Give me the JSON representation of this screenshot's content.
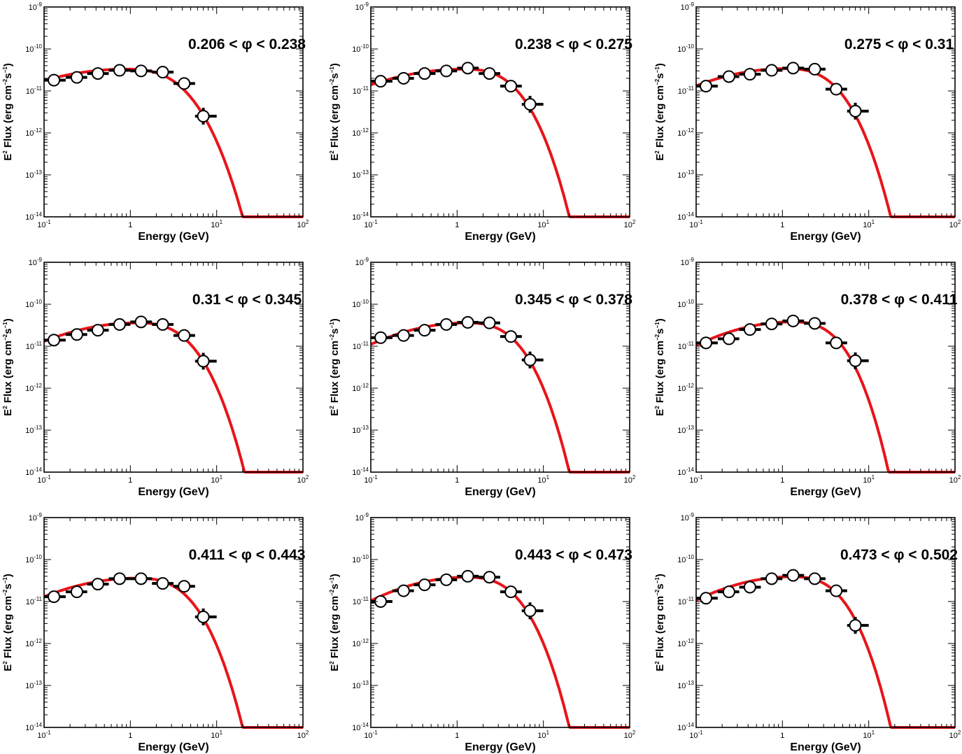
{
  "figure": {
    "xlabel": "Energy (GeV)",
    "ylabel_prefix": "E",
    "ylabel_main": " Flux (erg cm",
    "ylabel_mid": "s",
    "ylabel_end": ")",
    "x_tick_labels": [
      "10",
      "1",
      "10",
      "10"
    ],
    "y_tick_base": "10",
    "colors": {
      "model": "#e8141a",
      "points": "#000000",
      "frame": "#000000"
    }
  },
  "chart_data": [
    {
      "type": "scatter",
      "annotation": "0.206 < φ < 0.238",
      "xlabel": "Energy (GeV)",
      "ylabel": "E2 Flux (erg cm-2 s-1)",
      "xscale": "log",
      "yscale": "log",
      "xlim": [
        0.1,
        100
      ],
      "ylim": [
        1e-14,
        1e-09
      ],
      "x": [
        0.13,
        0.24,
        0.42,
        0.75,
        1.33,
        2.37,
        4.2,
        7.0
      ],
      "y": [
        1.8e-11,
        2.1e-11,
        2.6e-11,
        3.1e-11,
        3e-11,
        2.8e-11,
        1.5e-11,
        2.5e-12
      ],
      "x_err_low": [
        0.1,
        0.178,
        0.316,
        0.562,
        1.0,
        1.78,
        3.16,
        5.62
      ],
      "x_err_high": [
        0.178,
        0.316,
        0.562,
        1.0,
        1.78,
        3.16,
        5.62,
        10.0
      ],
      "model": {
        "name": "",
        "norm": 3.3e-11,
        "e_peak": 0.9,
        "sigma": 1.3,
        "cutoff_at": 20.0,
        "floor": 1e-14
      }
    },
    {
      "type": "scatter",
      "annotation": "0.238 < φ < 0.275",
      "xlabel": "Energy (GeV)",
      "ylabel": "E2 Flux (erg cm-2 s-1)",
      "xscale": "log",
      "yscale": "log",
      "xlim": [
        0.1,
        100
      ],
      "ylim": [
        1e-14,
        1e-09
      ],
      "x": [
        0.13,
        0.24,
        0.42,
        0.75,
        1.33,
        2.37,
        4.2,
        7.0
      ],
      "y": [
        1.7e-11,
        2e-11,
        2.6e-11,
        3e-11,
        3.5e-11,
        2.6e-11,
        1.3e-11,
        4.8e-12
      ],
      "x_err_low": [
        0.1,
        0.178,
        0.316,
        0.562,
        1.0,
        1.78,
        3.16,
        5.62
      ],
      "x_err_high": [
        0.178,
        0.316,
        0.562,
        1.0,
        1.78,
        3.16,
        5.62,
        10.0
      ],
      "model": {
        "name": "",
        "norm": 3.3e-11,
        "e_peak": 1.2,
        "sigma": 1.25,
        "cutoff_at": 20.0,
        "floor": 1e-14
      }
    },
    {
      "type": "scatter",
      "annotation": "0.275 < φ < 0.31",
      "xlabel": "Energy (GeV)",
      "ylabel": "E2 Flux (erg cm-2 s-1)",
      "xscale": "log",
      "yscale": "log",
      "xlim": [
        0.1,
        100
      ],
      "ylim": [
        1e-14,
        1e-09
      ],
      "x": [
        0.13,
        0.24,
        0.42,
        0.75,
        1.33,
        2.37,
        4.2,
        7.0
      ],
      "y": [
        1.3e-11,
        2.2e-11,
        2.5e-11,
        3.1e-11,
        3.5e-11,
        3.3e-11,
        1.1e-11,
        3.3e-12
      ],
      "x_err_low": [
        0.1,
        0.178,
        0.316,
        0.562,
        1.0,
        1.78,
        3.16,
        5.62
      ],
      "x_err_high": [
        0.178,
        0.316,
        0.562,
        1.0,
        1.78,
        3.16,
        5.62,
        10.0
      ],
      "model": {
        "name": "",
        "norm": 3.4e-11,
        "e_peak": 1.1,
        "sigma": 1.15,
        "cutoff_at": 18.0,
        "floor": 1e-14
      }
    },
    {
      "type": "scatter",
      "annotation": "0.31 < φ < 0.345",
      "xlabel": "Energy (GeV)",
      "ylabel": "E2 Flux (erg cm-2 s-1)",
      "xscale": "log",
      "yscale": "log",
      "xlim": [
        0.1,
        100
      ],
      "ylim": [
        1e-14,
        1e-09
      ],
      "x": [
        0.13,
        0.24,
        0.42,
        0.75,
        1.33,
        2.37,
        4.2,
        7.0
      ],
      "y": [
        1.4e-11,
        1.9e-11,
        2.4e-11,
        3.3e-11,
        3.8e-11,
        3.3e-11,
        1.8e-11,
        4.4e-12
      ],
      "x_err_low": [
        0.1,
        0.178,
        0.316,
        0.562,
        1.0,
        1.78,
        3.16,
        5.62
      ],
      "x_err_high": [
        0.178,
        0.316,
        0.562,
        1.0,
        1.78,
        3.16,
        5.62,
        10.0
      ],
      "model": {
        "name": "",
        "norm": 3.6e-11,
        "e_peak": 1.2,
        "sigma": 1.15,
        "cutoff_at": 21.0,
        "floor": 1e-14
      }
    },
    {
      "type": "scatter",
      "annotation": "0.345 < φ < 0.378",
      "xlabel": "Energy (GeV)",
      "ylabel": "E2 Flux (erg cm-2 s-1)",
      "xscale": "log",
      "yscale": "log",
      "xlim": [
        0.1,
        100
      ],
      "ylim": [
        1e-14,
        1e-09
      ],
      "x": [
        0.13,
        0.24,
        0.42,
        0.75,
        1.33,
        2.37,
        4.2,
        7.0
      ],
      "y": [
        1.6e-11,
        1.8e-11,
        2.4e-11,
        3.3e-11,
        3.7e-11,
        3.6e-11,
        1.7e-11,
        4.7e-12
      ],
      "x_err_low": [
        0.1,
        0.178,
        0.316,
        0.562,
        1.0,
        1.78,
        3.16,
        5.62
      ],
      "x_err_high": [
        0.178,
        0.316,
        0.562,
        1.0,
        1.78,
        3.16,
        5.62,
        10.0
      ],
      "model": {
        "name": "",
        "norm": 3.6e-11,
        "e_peak": 1.3,
        "sigma": 1.1,
        "cutoff_at": 20.0,
        "floor": 1e-14
      }
    },
    {
      "type": "scatter",
      "annotation": "0.378 < φ < 0.411",
      "xlabel": "Energy (GeV)",
      "ylabel": "E2 Flux (erg cm-2 s-1)",
      "xscale": "log",
      "yscale": "log",
      "xlim": [
        0.1,
        100
      ],
      "ylim": [
        1e-14,
        1e-09
      ],
      "x": [
        0.13,
        0.24,
        0.42,
        0.75,
        1.33,
        2.37,
        4.2,
        7.0
      ],
      "y": [
        1.2e-11,
        1.5e-11,
        2.5e-11,
        3.4e-11,
        4e-11,
        3.5e-11,
        1.2e-11,
        4.5e-12
      ],
      "x_err_low": [
        0.1,
        0.178,
        0.316,
        0.562,
        1.0,
        1.78,
        3.16,
        5.62
      ],
      "x_err_high": [
        0.178,
        0.316,
        0.562,
        1.0,
        1.78,
        3.16,
        5.62,
        10.0
      ],
      "model": {
        "name": "",
        "norm": 3.8e-11,
        "e_peak": 1.3,
        "sigma": 1.05,
        "cutoff_at": 17.0,
        "floor": 1e-14
      }
    },
    {
      "type": "scatter",
      "annotation": "0.411 < φ < 0.443",
      "xlabel": "Energy (GeV)",
      "ylabel": "E2 Flux (erg cm-2 s-1)",
      "xscale": "log",
      "yscale": "log",
      "xlim": [
        0.1,
        100
      ],
      "ylim": [
        1e-14,
        1e-09
      ],
      "x": [
        0.13,
        0.24,
        0.42,
        0.75,
        1.33,
        2.37,
        4.2,
        7.0
      ],
      "y": [
        1.3e-11,
        1.7e-11,
        2.6e-11,
        3.5e-11,
        3.5e-11,
        2.7e-11,
        2.3e-11,
        4.3e-12
      ],
      "x_err_low": [
        0.1,
        0.178,
        0.316,
        0.562,
        1.0,
        1.78,
        3.16,
        5.62
      ],
      "x_err_high": [
        0.178,
        0.316,
        0.562,
        1.0,
        1.78,
        3.16,
        5.62,
        10.0
      ],
      "model": {
        "name": "",
        "norm": 3.6e-11,
        "e_peak": 1.2,
        "sigma": 1.15,
        "cutoff_at": 20.0,
        "floor": 1e-14
      }
    },
    {
      "type": "scatter",
      "annotation": "0.443 < φ < 0.473",
      "xlabel": "Energy (GeV)",
      "ylabel": "E2 Flux (erg cm-2 s-1)",
      "xscale": "log",
      "yscale": "log",
      "xlim": [
        0.1,
        100
      ],
      "ylim": [
        1e-14,
        1e-09
      ],
      "x": [
        0.13,
        0.24,
        0.42,
        0.75,
        1.33,
        2.37,
        4.2,
        7.0
      ],
      "y": [
        1e-11,
        1.8e-11,
        2.5e-11,
        3.3e-11,
        4e-11,
        3.8e-11,
        1.7e-11,
        6e-12
      ],
      "x_err_low": [
        0.1,
        0.178,
        0.316,
        0.562,
        1.0,
        1.78,
        3.16,
        5.62
      ],
      "x_err_high": [
        0.178,
        0.316,
        0.562,
        1.0,
        1.78,
        3.16,
        5.62,
        10.0
      ],
      "model": {
        "name": "",
        "norm": 3.8e-11,
        "e_peak": 1.3,
        "sigma": 1.05,
        "cutoff_at": 20.0,
        "floor": 1e-14
      }
    },
    {
      "type": "scatter",
      "annotation": "0.473 < φ < 0.502",
      "xlabel": "Energy (GeV)",
      "ylabel": "E2 Flux (erg cm-2 s-1)",
      "xscale": "log",
      "yscale": "log",
      "xlim": [
        0.1,
        100
      ],
      "ylim": [
        1e-14,
        1e-09
      ],
      "x": [
        0.13,
        0.24,
        0.42,
        0.75,
        1.33,
        2.37,
        4.2,
        7.0
      ],
      "y": [
        1.2e-11,
        1.7e-11,
        2.2e-11,
        3.5e-11,
        4.2e-11,
        3.5e-11,
        1.8e-11,
        2.7e-12
      ],
      "x_err_low": [
        0.1,
        0.178,
        0.316,
        0.562,
        1.0,
        1.78,
        3.16,
        5.62
      ],
      "x_err_high": [
        0.178,
        0.316,
        0.562,
        1.0,
        1.78,
        3.16,
        5.62,
        10.0
      ],
      "model": {
        "name": "",
        "norm": 3.9e-11,
        "e_peak": 1.3,
        "sigma": 1.05,
        "cutoff_at": 18.0,
        "floor": 1e-14
      }
    }
  ]
}
